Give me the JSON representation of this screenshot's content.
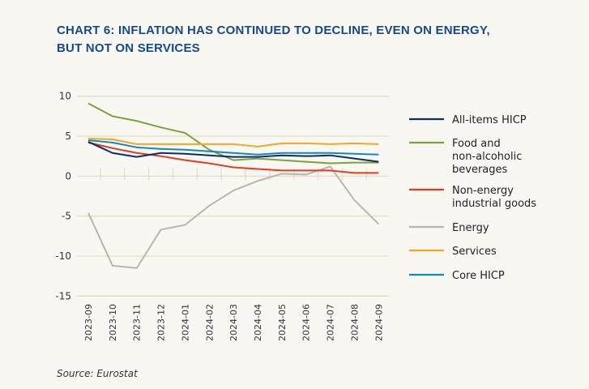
{
  "title": "CHART 6: INFLATION HAS CONTINUED TO DECLINE, EVEN ON ENERGY, BUT NOT ON SERVICES",
  "source": "Source: Eurostat",
  "chart_data": {
    "type": "line",
    "title": "CHART 6: INFLATION HAS CONTINUED TO DECLINE, EVEN ON ENERGY, BUT NOT ON SERVICES",
    "xlabel": "",
    "ylabel": "",
    "ylim": [
      -15,
      10
    ],
    "yticks": [
      "10",
      "5",
      "0",
      "-5",
      "-10",
      "-15"
    ],
    "ytick_values": [
      10,
      5,
      0,
      -5,
      -10,
      -15
    ],
    "grid": "horizontal",
    "legend": "right",
    "categories": [
      "2023-09",
      "2023-10",
      "2023-11",
      "2023-12",
      "2024-01",
      "2024-02",
      "2024-03",
      "2024-04",
      "2024-05",
      "2024-06",
      "2024-07",
      "2024-08",
      "2024-09"
    ],
    "series": [
      {
        "name": "All-items HICP",
        "legend_lines": [
          "All-items HICP"
        ],
        "color": "#0f2d63",
        "values": [
          4.3,
          2.9,
          2.4,
          2.9,
          2.8,
          2.6,
          2.4,
          2.4,
          2.6,
          2.5,
          2.6,
          2.2,
          1.8
        ]
      },
      {
        "name": "Food and non-alcoholic beverages",
        "legend_lines": [
          "Food and",
          "non-alcoholic",
          "beverages"
        ],
        "color": "#7aa43a",
        "values": [
          9.1,
          7.5,
          6.9,
          6.1,
          5.4,
          3.3,
          2.0,
          2.2,
          2.0,
          1.8,
          1.6,
          1.7,
          1.7
        ]
      },
      {
        "name": "Non-energy industrial goods",
        "legend_lines": [
          "Non-energy",
          "industrial goods"
        ],
        "color": "#e63a1e",
        "values": [
          4.2,
          3.5,
          2.9,
          2.5,
          2.0,
          1.6,
          1.1,
          0.9,
          0.7,
          0.7,
          0.7,
          0.4,
          0.4
        ]
      },
      {
        "name": "Energy",
        "legend_lines": [
          "Energy"
        ],
        "color": "#bdb4ad",
        "values": [
          -4.6,
          -11.2,
          -11.5,
          -6.7,
          -6.1,
          -3.7,
          -1.8,
          -0.6,
          0.3,
          0.2,
          1.2,
          -3.0,
          -6.0
        ]
      },
      {
        "name": "Services",
        "legend_lines": [
          "Services"
        ],
        "color": "#f6a623",
        "values": [
          4.7,
          4.6,
          4.0,
          4.0,
          4.0,
          4.0,
          4.0,
          3.7,
          4.1,
          4.1,
          4.0,
          4.1,
          4.0
        ]
      },
      {
        "name": "Core HICP",
        "legend_lines": [
          "Core HICP"
        ],
        "color": "#1287c8",
        "values": [
          4.5,
          4.2,
          3.6,
          3.4,
          3.3,
          3.1,
          2.9,
          2.7,
          2.9,
          2.9,
          2.9,
          2.8,
          2.7
        ]
      }
    ]
  }
}
